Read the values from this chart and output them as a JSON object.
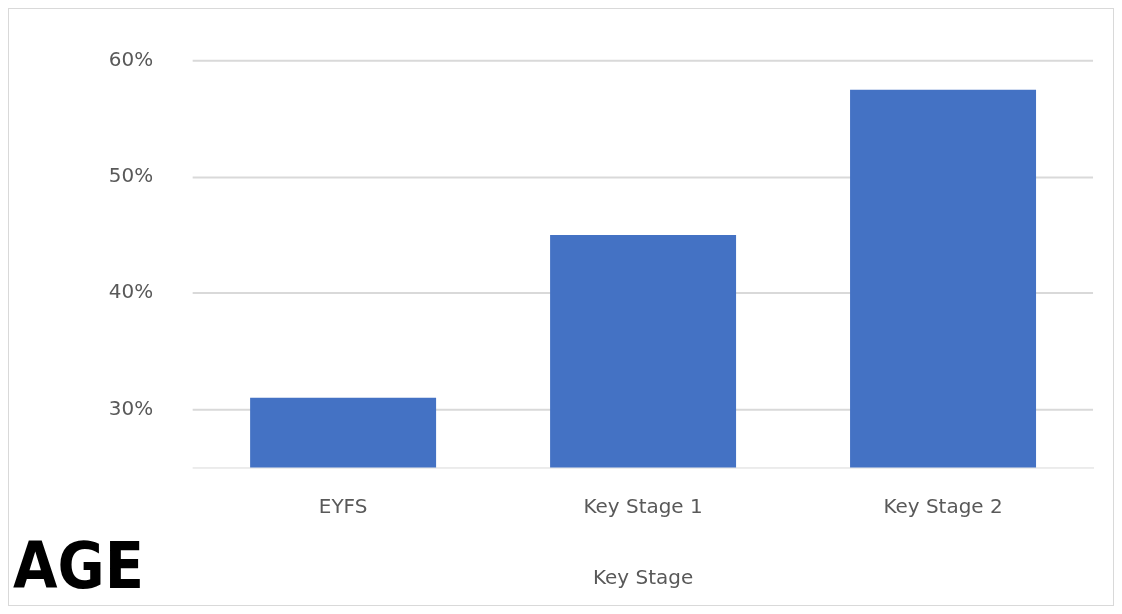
{
  "chart_data": {
    "type": "bar",
    "xlabel": "Key Stage",
    "categories": [
      "EYFS",
      "Key Stage 1",
      "Key Stage 2"
    ],
    "values": [
      31,
      45,
      57.5
    ],
    "color": "#4472c4",
    "ylim": [
      25,
      60
    ],
    "yticks": [
      {
        "value": 30,
        "label": "30%"
      },
      {
        "value": 40,
        "label": "40%"
      },
      {
        "value": 50,
        "label": "50%"
      },
      {
        "value": 60,
        "label": "60%"
      }
    ],
    "grid": "y",
    "legend": false,
    "annotations": [
      "AGE"
    ]
  }
}
